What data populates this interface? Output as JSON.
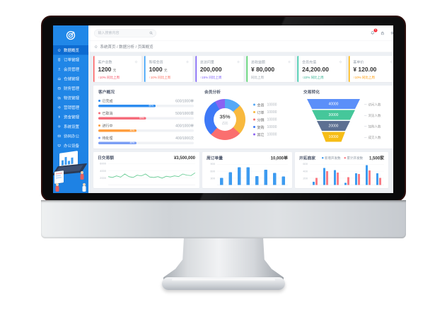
{
  "header": {
    "search_placeholder": "输入搜索内容",
    "notification_badge": "5"
  },
  "breadcrumb": {
    "text": "系统首页 / 数据分析 / 页面概览"
  },
  "sidebar": {
    "items": [
      {
        "label": "数据概览",
        "icon": "home",
        "active": true
      },
      {
        "label": "订单管理",
        "icon": "orders",
        "active": false
      },
      {
        "label": "会员管理",
        "icon": "members",
        "active": false
      },
      {
        "label": "仓储管理",
        "icon": "warehouse",
        "active": false
      },
      {
        "label": "财务管理",
        "icon": "finance",
        "active": false
      },
      {
        "label": "物流管理",
        "icon": "logistics",
        "active": false
      },
      {
        "label": "营销管理",
        "icon": "marketing",
        "active": false
      },
      {
        "label": "资金管理",
        "icon": "funds",
        "active": false
      },
      {
        "label": "系统设置",
        "icon": "settings",
        "active": false
      },
      {
        "label": "协同办公",
        "icon": "mail",
        "active": false
      },
      {
        "label": "办公设备",
        "icon": "device",
        "active": false
      }
    ]
  },
  "kpi_cards": [
    {
      "title": "客户总数",
      "value": "1200",
      "unit": "元",
      "delta": "↑10% 同比上周",
      "delta_color": "#f5485c",
      "accent": "#ff5b5e"
    },
    {
      "title": "新增会员",
      "value": "1000",
      "unit": "元",
      "delta": "↑10% 同比上周",
      "delta_color": "#fa6a5c",
      "accent": "#2d9cfa"
    },
    {
      "title": "总访问量",
      "value": "200,000",
      "unit": "",
      "delta": "↑15% 同比上周",
      "delta_color": "#7a5af8",
      "accent": "#7a5af8"
    },
    {
      "title": "总收益额",
      "value": "¥ 80,000",
      "unit": "",
      "delta": "同比上周",
      "delta_color": "#9aa3ad",
      "accent": "#4cd263"
    },
    {
      "title": "会员充值",
      "value": "24,200.00",
      "unit": "",
      "delta": "↑22% 同比上周",
      "delta_color": "#30b08f",
      "accent": "#2fc8a5"
    },
    {
      "title": "客单价",
      "value": "¥ 120.00",
      "unit": "",
      "delta": "↑10% 同比上周",
      "delta_color": "#ff9900",
      "accent": "#ffb200"
    }
  ],
  "panels": {
    "customer_overview": {
      "title": "客户概况"
    },
    "member_analysis": {
      "title": "会员分析"
    },
    "conversion_funnel": {
      "title": "交易转化"
    },
    "daily_trade": {
      "title": "日交易额",
      "total": "¥3,500,000"
    },
    "weekly_orders": {
      "title": "周订单量",
      "total": "10,000单"
    },
    "merchant_dev": {
      "title": "开拓商家",
      "total": "1,500家"
    }
  },
  "chart_data": [
    {
      "id": "customer_progress",
      "type": "bar",
      "orientation": "horizontal",
      "items": [
        {
          "label": "已完成",
          "text": "600/1000单",
          "value": 600,
          "max": 1000,
          "percent": "60%",
          "color": "#2d8cf0"
        },
        {
          "label": "已取消",
          "text": "500/1000单",
          "value": 500,
          "max": 1000,
          "percent": "50%",
          "color": "#f56c7b"
        },
        {
          "label": "进行中",
          "text": "400/1000单",
          "value": 400,
          "max": 1000,
          "percent": "40%",
          "color": "#ff9f40"
        },
        {
          "label": "待处理",
          "text": "400/1000次",
          "value": 400,
          "max": 1000,
          "percent": "40%",
          "color": "#7b9ef5"
        }
      ]
    },
    {
      "id": "member_donut",
      "type": "pie",
      "center_value": "35%",
      "center_label": "占比",
      "segments": [
        {
          "label": "会员",
          "value": "10000",
          "pct": 13,
          "color": "#54a8f6"
        },
        {
          "label": "订单",
          "value": "10000",
          "pct": 24,
          "color": "#f8b93e"
        },
        {
          "label": "分销",
          "value": "10000",
          "pct": 25,
          "color": "#fa6f6f"
        },
        {
          "label": "复购",
          "value": "10000",
          "pct": 30,
          "color": "#3e79f7"
        },
        {
          "label": "其它",
          "value": "10000",
          "pct": 8,
          "color": "#8a63f2"
        }
      ]
    },
    {
      "id": "conversion_funnel",
      "type": "funnel",
      "layers": [
        {
          "value": "40000",
          "label": "访问人数",
          "color": "#5b8ff9"
        },
        {
          "value": "30000",
          "label": "浏览人数",
          "color": "#45c79a"
        },
        {
          "value": "20000",
          "label": "加购人数",
          "color": "#5d7092"
        },
        {
          "value": "10000",
          "label": "成交人数",
          "color": "#f6bd16"
        }
      ]
    },
    {
      "id": "daily_trade_line",
      "type": "line",
      "color": "#5ec98e",
      "yticks": [
        "6000",
        "4000",
        "2000"
      ],
      "ymax": 6000,
      "values": [
        2300,
        2050,
        2500,
        2150,
        3050,
        2300,
        2050,
        2700,
        2500,
        3050,
        2200,
        2050,
        2300,
        1850,
        2400,
        2200,
        2500,
        2300,
        3050,
        2700,
        2600,
        3400
      ]
    },
    {
      "id": "weekly_orders_bar",
      "type": "bar",
      "color": "#3d9bf0",
      "yticks": [
        "900",
        "600",
        "300"
      ],
      "ymax": 900,
      "values": [
        300,
        550,
        760,
        770,
        380,
        650,
        520,
        360
      ]
    },
    {
      "id": "merchant_dev_bars",
      "type": "bar",
      "yticks": [
        "600",
        "400",
        "200"
      ],
      "ymax": 800,
      "series": [
        {
          "name": "新增开发数",
          "color": "#3d9bf0",
          "values": [
            120,
            620,
            540,
            80,
            420,
            720,
            430
          ]
        },
        {
          "name": "累计开发数",
          "color": "#fb7b84",
          "values": [
            260,
            500,
            450,
            280,
            400,
            530,
            260
          ]
        }
      ]
    }
  ]
}
